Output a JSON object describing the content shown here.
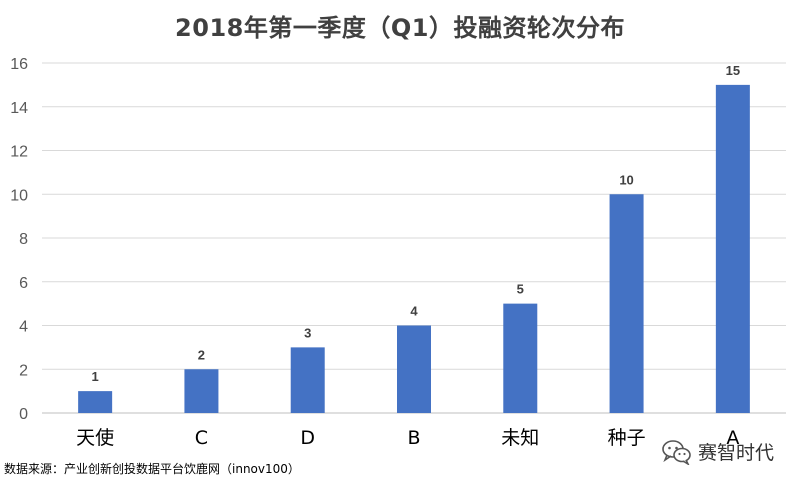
{
  "chart_data": {
    "type": "bar",
    "title": "2018年第一季度（Q1）投融资轮次分布",
    "categories": [
      "天使",
      "C",
      "D",
      "B",
      "未知",
      "种子",
      "A"
    ],
    "values": [
      1,
      2,
      3,
      4,
      5,
      10,
      15
    ],
    "ylim": [
      0,
      16
    ],
    "yticks": [
      0,
      2,
      4,
      6,
      8,
      10,
      12,
      14,
      16
    ],
    "grid": true,
    "bar_color": "#4472C4",
    "data_labels": true
  },
  "footer": {
    "source": "数据来源：产业创新创投数据平台饮鹿网（innov100）",
    "brand": "赛智时代",
    "brand_icon": "wechat-icon"
  }
}
